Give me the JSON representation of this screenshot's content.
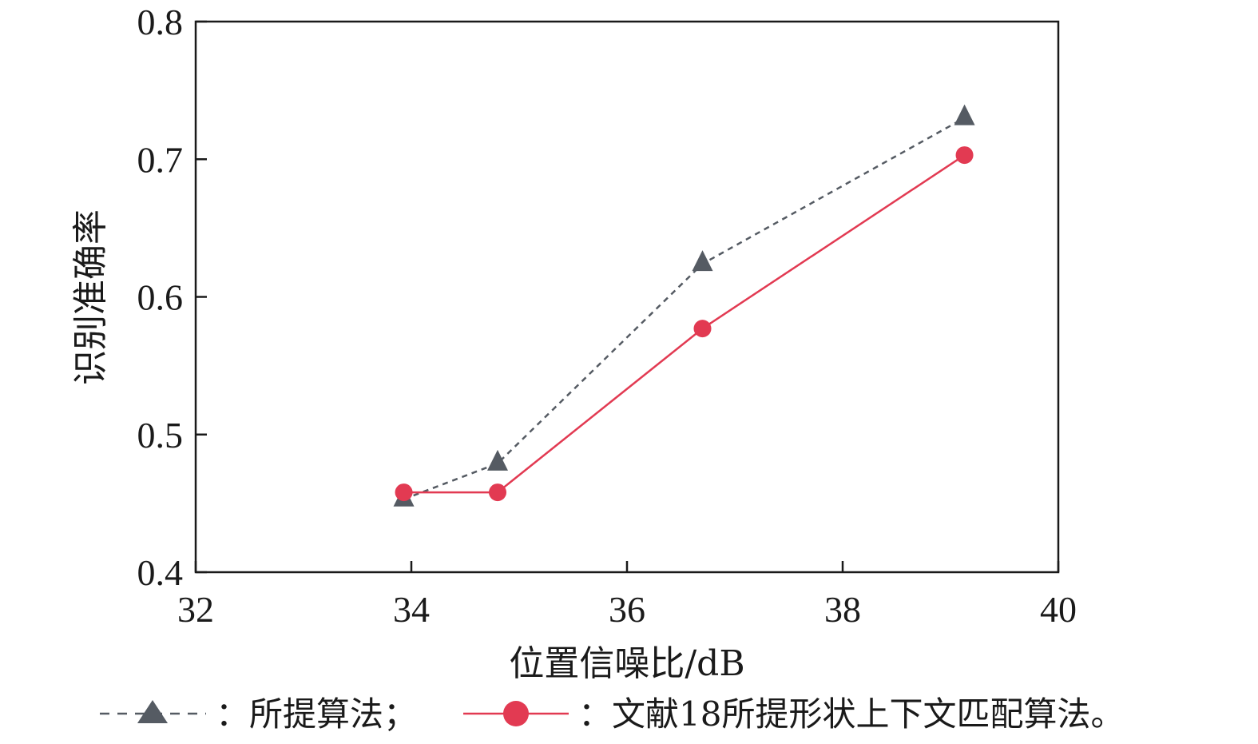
{
  "chart_data": {
    "type": "line",
    "xlabel": "位置信噪比/dB",
    "ylabel": "识别准确率",
    "xlim": [
      32,
      40
    ],
    "ylim": [
      0.4,
      0.8
    ],
    "x_ticks": [
      "32",
      "34",
      "36",
      "38",
      "40"
    ],
    "y_ticks": [
      "0.4",
      "0.5",
      "0.6",
      "0.7",
      "0.8"
    ],
    "grid": false,
    "legend_position": "bottom",
    "series": [
      {
        "name": "：所提算法；",
        "marker": "triangle",
        "line_style": "dashed",
        "color": "#555b63",
        "x": [
          33.93,
          34.8,
          36.7,
          39.13
        ],
        "y": [
          0.453,
          0.479,
          0.624,
          0.73
        ]
      },
      {
        "name": "：文献18所提形状上下文匹配算法。",
        "marker": "circle",
        "line_style": "solid",
        "color": "#e23a52",
        "x": [
          33.93,
          34.8,
          36.7,
          39.13
        ],
        "y": [
          0.458,
          0.458,
          0.577,
          0.703
        ]
      }
    ]
  }
}
